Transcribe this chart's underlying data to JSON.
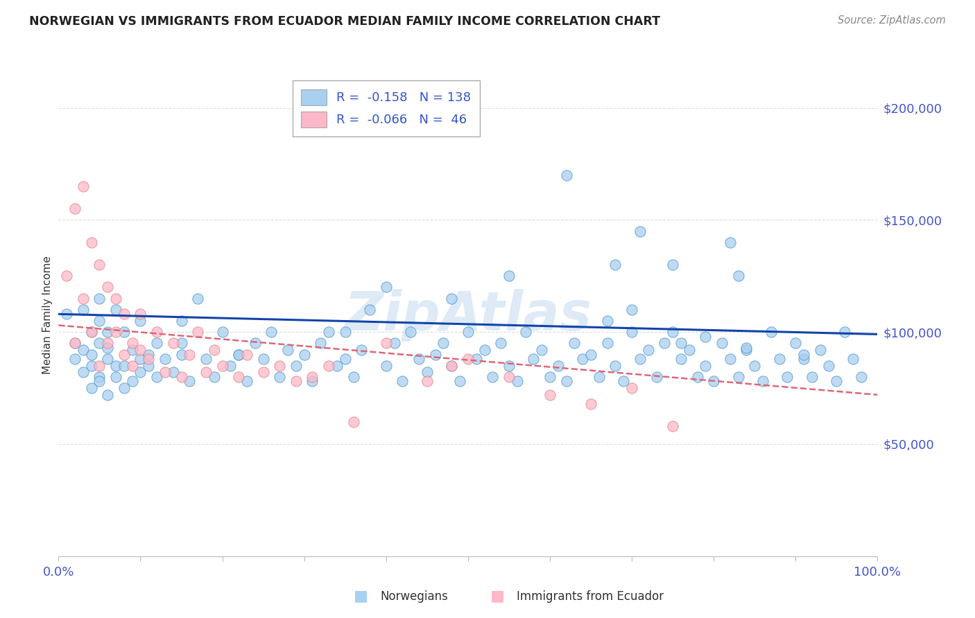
{
  "title": "NORWEGIAN VS IMMIGRANTS FROM ECUADOR MEDIAN FAMILY INCOME CORRELATION CHART",
  "source": "Source: ZipAtlas.com",
  "ylabel": "Median Family Income",
  "R1": -0.158,
  "N1": 138,
  "R2": -0.066,
  "N2": 46,
  "color1_fill": "#a8d0f0",
  "color1_edge": "#5599cc",
  "color2_fill": "#ffb8c8",
  "color2_edge": "#dd8888",
  "trend1_color": "#1144aa",
  "trend2_color": "#dd6677",
  "background_color": "#ffffff",
  "grid_color": "#dddddd",
  "ytick_color": "#4455cc",
  "xtick_color": "#4455cc",
  "title_color": "#222222",
  "source_color": "#888888",
  "ylabel_color": "#333333",
  "watermark_color": "#c8ddf0",
  "legend_label1": "Norwegians",
  "legend_label2": "Immigrants from Ecuador",
  "xlim": [
    0.0,
    1.0
  ],
  "ylim": [
    0,
    215000
  ],
  "yticks": [
    0,
    50000,
    100000,
    150000,
    200000
  ],
  "ytick_labels": [
    "",
    "$50,000",
    "$100,000",
    "$150,000",
    "$200,000"
  ],
  "trend1_x0": 0.0,
  "trend1_x1": 1.0,
  "trend1_y0": 108000,
  "trend1_y1": 99000,
  "trend2_x0": 0.0,
  "trend2_x1": 1.0,
  "trend2_y0": 103000,
  "trend2_y1": 72000,
  "scatter1_x": [
    0.01,
    0.02,
    0.02,
    0.03,
    0.03,
    0.03,
    0.04,
    0.04,
    0.04,
    0.04,
    0.05,
    0.05,
    0.05,
    0.05,
    0.05,
    0.06,
    0.06,
    0.06,
    0.06,
    0.07,
    0.07,
    0.07,
    0.08,
    0.08,
    0.08,
    0.09,
    0.09,
    0.1,
    0.1,
    0.1,
    0.11,
    0.11,
    0.12,
    0.12,
    0.13,
    0.14,
    0.15,
    0.15,
    0.16,
    0.17,
    0.18,
    0.19,
    0.2,
    0.21,
    0.22,
    0.23,
    0.24,
    0.25,
    0.26,
    0.27,
    0.28,
    0.29,
    0.3,
    0.31,
    0.32,
    0.33,
    0.34,
    0.35,
    0.36,
    0.37,
    0.38,
    0.4,
    0.41,
    0.42,
    0.43,
    0.44,
    0.45,
    0.46,
    0.47,
    0.48,
    0.49,
    0.5,
    0.51,
    0.52,
    0.53,
    0.54,
    0.55,
    0.56,
    0.57,
    0.58,
    0.59,
    0.6,
    0.61,
    0.62,
    0.63,
    0.64,
    0.65,
    0.66,
    0.67,
    0.68,
    0.69,
    0.7,
    0.71,
    0.72,
    0.73,
    0.74,
    0.75,
    0.76,
    0.77,
    0.78,
    0.79,
    0.8,
    0.81,
    0.82,
    0.83,
    0.84,
    0.85,
    0.86,
    0.87,
    0.88,
    0.89,
    0.9,
    0.91,
    0.92,
    0.93,
    0.94,
    0.95,
    0.96,
    0.97,
    0.98,
    0.62,
    0.75,
    0.82,
    0.55,
    0.68,
    0.71,
    0.83,
    0.4,
    0.48,
    0.7,
    0.15,
    0.22,
    0.35,
    0.76,
    0.91,
    0.67,
    0.79,
    0.84
  ],
  "scatter1_y": [
    108000,
    95000,
    88000,
    92000,
    110000,
    82000,
    100000,
    75000,
    90000,
    85000,
    105000,
    115000,
    80000,
    95000,
    78000,
    88000,
    100000,
    72000,
    93000,
    80000,
    110000,
    85000,
    75000,
    100000,
    85000,
    78000,
    92000,
    88000,
    82000,
    105000,
    85000,
    90000,
    80000,
    95000,
    88000,
    82000,
    105000,
    90000,
    78000,
    115000,
    88000,
    80000,
    100000,
    85000,
    90000,
    78000,
    95000,
    88000,
    100000,
    80000,
    92000,
    85000,
    90000,
    78000,
    95000,
    100000,
    85000,
    88000,
    80000,
    92000,
    110000,
    85000,
    95000,
    78000,
    100000,
    88000,
    82000,
    90000,
    95000,
    85000,
    78000,
    100000,
    88000,
    92000,
    80000,
    95000,
    85000,
    78000,
    100000,
    88000,
    92000,
    80000,
    85000,
    78000,
    95000,
    88000,
    90000,
    80000,
    95000,
    85000,
    78000,
    100000,
    88000,
    92000,
    80000,
    95000,
    100000,
    88000,
    92000,
    80000,
    85000,
    78000,
    95000,
    88000,
    80000,
    92000,
    85000,
    78000,
    100000,
    88000,
    80000,
    95000,
    88000,
    80000,
    92000,
    85000,
    78000,
    100000,
    88000,
    80000,
    170000,
    130000,
    140000,
    125000,
    130000,
    145000,
    125000,
    120000,
    115000,
    110000,
    95000,
    90000,
    100000,
    95000,
    90000,
    105000,
    98000,
    93000
  ],
  "scatter2_x": [
    0.01,
    0.02,
    0.02,
    0.03,
    0.03,
    0.04,
    0.04,
    0.05,
    0.05,
    0.06,
    0.06,
    0.07,
    0.07,
    0.08,
    0.08,
    0.09,
    0.09,
    0.1,
    0.1,
    0.11,
    0.12,
    0.13,
    0.14,
    0.15,
    0.16,
    0.17,
    0.18,
    0.19,
    0.2,
    0.22,
    0.23,
    0.25,
    0.27,
    0.29,
    0.31,
    0.33,
    0.36,
    0.4,
    0.45,
    0.48,
    0.5,
    0.55,
    0.6,
    0.65,
    0.7,
    0.75
  ],
  "scatter2_y": [
    125000,
    155000,
    95000,
    165000,
    115000,
    140000,
    100000,
    130000,
    85000,
    120000,
    95000,
    115000,
    100000,
    90000,
    108000,
    95000,
    85000,
    92000,
    108000,
    88000,
    100000,
    82000,
    95000,
    80000,
    90000,
    100000,
    82000,
    92000,
    85000,
    80000,
    90000,
    82000,
    85000,
    78000,
    80000,
    85000,
    60000,
    95000,
    78000,
    85000,
    88000,
    80000,
    72000,
    68000,
    75000,
    58000
  ]
}
